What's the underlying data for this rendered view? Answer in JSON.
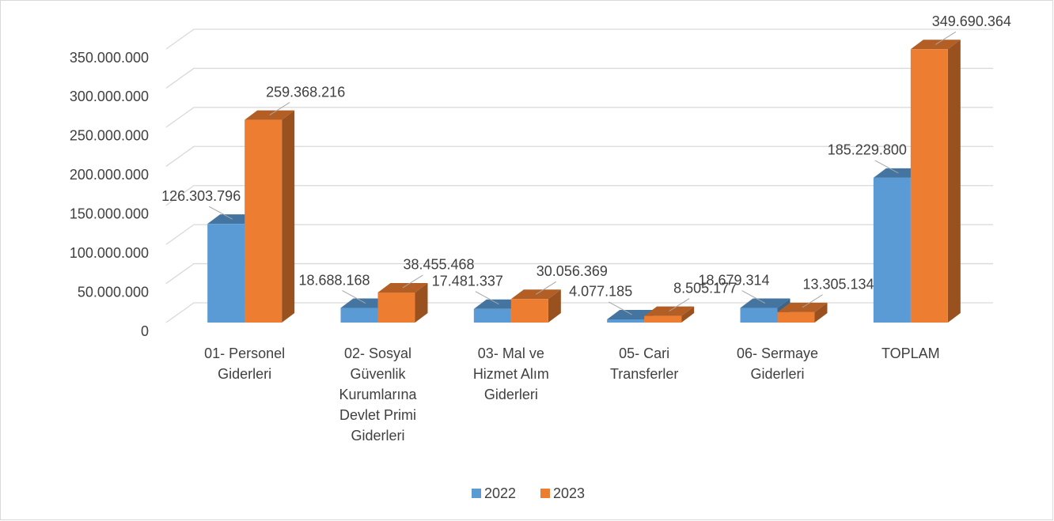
{
  "chart_data": {
    "type": "bar3d",
    "categories": [
      "01- Personel Giderleri",
      "02- Sosyal Güvenlik Kurumlarına Devlet Primi Giderleri",
      "03- Mal ve Hizmet Alım Giderleri",
      "05- Cari Transferler",
      "06- Sermaye Giderleri",
      "TOPLAM"
    ],
    "series": [
      {
        "name": "2022",
        "color": "#5b9bd5",
        "values": [
          126303796,
          18688168,
          17481337,
          4077185,
          18679314,
          185229800
        ],
        "value_labels": [
          "126.303.796",
          "18.688.168",
          "17.481.337",
          "4.077.185",
          "18.679.314",
          "185.229.800"
        ]
      },
      {
        "name": "2023",
        "color": "#ed7d31",
        "values": [
          259368216,
          38455468,
          30056369,
          8505177,
          13305134,
          349690364
        ],
        "value_labels": [
          "259.368.216",
          "38.455.468",
          "30.056.369",
          "8.505.177",
          "13.305.134",
          "349.690.364"
        ]
      }
    ],
    "ylim": [
      0,
      350000000
    ],
    "yticks": [
      {
        "value": 0,
        "label": "0"
      },
      {
        "value": 50000000,
        "label": "50.000.000"
      },
      {
        "value": 100000000,
        "label": "100.000.000"
      },
      {
        "value": 150000000,
        "label": "150.000.000"
      },
      {
        "value": 200000000,
        "label": "200.000.000"
      },
      {
        "value": 250000000,
        "label": "250.000.000"
      },
      {
        "value": 300000000,
        "label": "300.000.000"
      },
      {
        "value": 350000000,
        "label": "350.000.000"
      }
    ],
    "grid": true,
    "legend": "bottom"
  }
}
